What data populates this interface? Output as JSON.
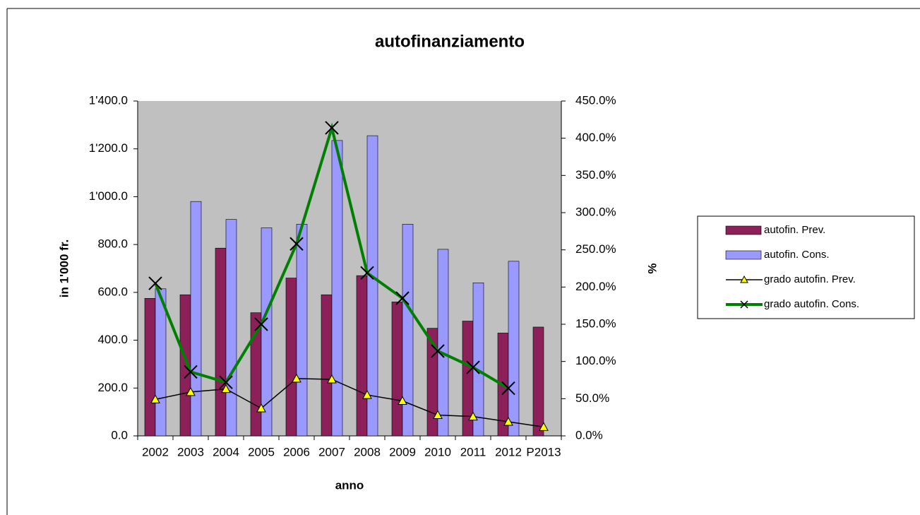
{
  "chart_data": {
    "type": "bar-line",
    "title": "autofinanziamento",
    "x_label": "anno",
    "y_label": "in 1'000 fr.",
    "y2_label": "%",
    "categories": [
      "2002",
      "2003",
      "2004",
      "2005",
      "2006",
      "2007",
      "2008",
      "2009",
      "2010",
      "2011",
      "2012",
      "P2013"
    ],
    "series": [
      {
        "name": "autofin. Prev.",
        "type": "bar",
        "color": "#8b2158",
        "values": [
          575,
          590,
          785,
          515,
          660,
          590,
          670,
          560,
          450,
          480,
          430,
          455
        ]
      },
      {
        "name": "autofin. Cons.",
        "type": "bar",
        "color": "#9999ff",
        "values": [
          615,
          980,
          905,
          870,
          885,
          1235,
          1255,
          885,
          780,
          640,
          730,
          null
        ]
      },
      {
        "name": "grado autofin. Prev.",
        "type": "line",
        "axis": "y2",
        "color": "#000000",
        "marker": "triangle",
        "marker_color": "#ffff00",
        "values": [
          49,
          59,
          63,
          37,
          77,
          76,
          55,
          47,
          28,
          26,
          19,
          12
        ]
      },
      {
        "name": "grado autofin. Cons.",
        "type": "line",
        "axis": "y2",
        "color": "#008000",
        "marker": "x",
        "marker_color": "#000000",
        "values": [
          205,
          86,
          72,
          150,
          258,
          414,
          219,
          185,
          114,
          92,
          64,
          null
        ]
      }
    ],
    "ylim": [
      0,
      1400
    ],
    "yticks": [
      {
        "value": 0,
        "label": "0.0"
      },
      {
        "value": 200,
        "label": "200.0"
      },
      {
        "value": 400,
        "label": "400.0"
      },
      {
        "value": 600,
        "label": "600.0"
      },
      {
        "value": 800,
        "label": "800.0"
      },
      {
        "value": 1000,
        "label": "1'000.0"
      },
      {
        "value": 1200,
        "label": "1'200.0"
      },
      {
        "value": 1400,
        "label": "1'400.0"
      }
    ],
    "y2lim": [
      0,
      450
    ],
    "y2ticks": [
      {
        "value": 0,
        "label": "0.0%"
      },
      {
        "value": 50,
        "label": "50.0%"
      },
      {
        "value": 100,
        "label": "100.0%"
      },
      {
        "value": 150,
        "label": "150.0%"
      },
      {
        "value": 200,
        "label": "200.0%"
      },
      {
        "value": 250,
        "label": "250.0%"
      },
      {
        "value": 300,
        "label": "300.0%"
      },
      {
        "value": 350,
        "label": "350.0%"
      },
      {
        "value": 400,
        "label": "400.0%"
      },
      {
        "value": 450,
        "label": "450.0%"
      }
    ],
    "plot_background": "#c0c0c0",
    "legend": "right"
  }
}
